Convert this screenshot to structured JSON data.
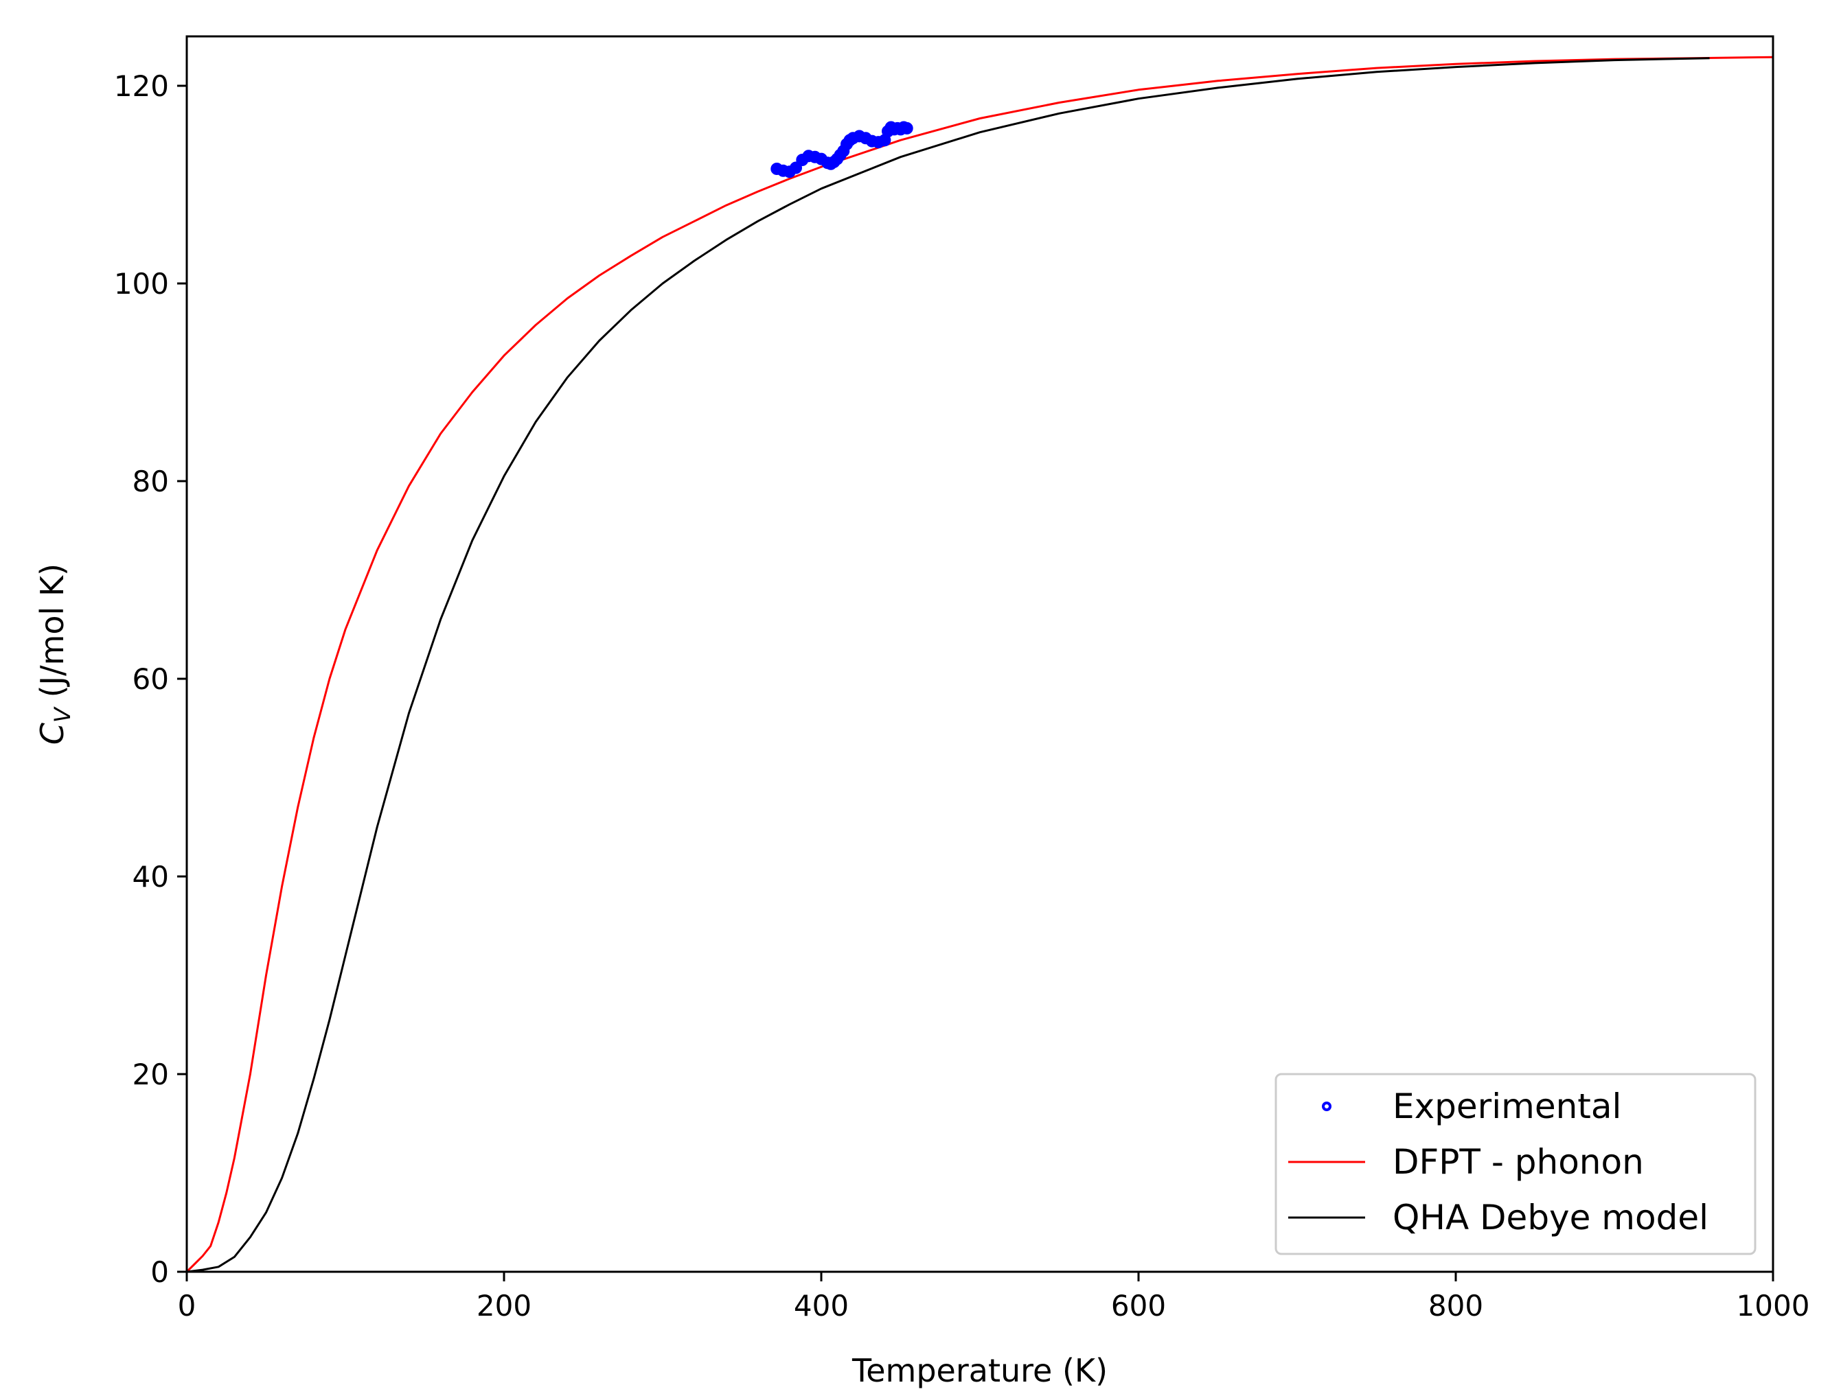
{
  "chart_data": {
    "type": "line",
    "title": "",
    "xlabel": "Temperature (K)",
    "ylabel_symbol": "C",
    "ylabel_subscript": "V",
    "ylabel_rest": " (J/mol K)",
    "xlim": [
      0,
      1000
    ],
    "ylim": [
      0,
      125
    ],
    "xticks": [
      "0",
      "200",
      "400",
      "600",
      "800",
      "1000"
    ],
    "yticks": [
      "0",
      "20",
      "40",
      "60",
      "80",
      "100",
      "120"
    ],
    "xtick_values": [
      0,
      200,
      400,
      600,
      800,
      1000
    ],
    "ytick_values": [
      0,
      20,
      40,
      60,
      80,
      100,
      120
    ],
    "grid": false,
    "legend_position": "bottom-right",
    "series": [
      {
        "name": "Experimental",
        "kind": "scatter",
        "color": "#0000ff",
        "x": [
          372,
          376,
          380,
          384,
          388,
          392,
          396,
          400,
          404,
          406,
          408,
          410,
          412,
          414,
          416,
          418,
          420,
          424,
          428,
          432,
          436,
          440,
          442,
          444,
          446,
          448,
          450,
          452,
          454
        ],
        "y": [
          111.6,
          111.4,
          111.3,
          111.7,
          112.5,
          112.9,
          112.8,
          112.6,
          112.2,
          112.1,
          112.3,
          112.6,
          113.0,
          113.4,
          114.1,
          114.5,
          114.7,
          114.9,
          114.7,
          114.4,
          114.3,
          114.5,
          115.4,
          115.8,
          115.6,
          115.7,
          115.6,
          115.8,
          115.7
        ]
      },
      {
        "name": "DFPT - phonon",
        "kind": "line",
        "color": "#ff0000",
        "x": [
          0,
          5,
          10,
          15,
          20,
          25,
          30,
          40,
          50,
          60,
          70,
          80,
          90,
          100,
          120,
          140,
          160,
          180,
          200,
          220,
          240,
          260,
          280,
          300,
          320,
          340,
          360,
          380,
          400,
          450,
          500,
          550,
          600,
          650,
          700,
          750,
          800,
          850,
          900,
          950,
          1000
        ],
        "y": [
          0,
          0.8,
          1.6,
          2.6,
          5.0,
          8.0,
          11.5,
          20.0,
          30.0,
          39.0,
          47.0,
          54.0,
          60.0,
          65.0,
          73.0,
          79.5,
          84.8,
          89.0,
          92.7,
          95.8,
          98.5,
          100.8,
          102.8,
          104.7,
          106.3,
          107.9,
          109.3,
          110.6,
          111.8,
          114.5,
          116.7,
          118.3,
          119.6,
          120.5,
          121.2,
          121.8,
          122.2,
          122.5,
          122.7,
          122.8,
          122.9
        ]
      },
      {
        "name": "QHA Debye model",
        "kind": "line",
        "color": "#000000",
        "x": [
          0,
          10,
          20,
          30,
          40,
          50,
          60,
          70,
          80,
          90,
          100,
          110,
          120,
          140,
          160,
          180,
          200,
          220,
          240,
          260,
          280,
          300,
          320,
          340,
          360,
          380,
          400,
          450,
          500,
          550,
          600,
          650,
          700,
          750,
          800,
          850,
          900,
          960
        ],
        "y": [
          0,
          0.2,
          0.5,
          1.5,
          3.5,
          6.0,
          9.5,
          14.0,
          19.5,
          25.5,
          32.0,
          38.5,
          45.0,
          56.5,
          66.0,
          74.0,
          80.5,
          86.0,
          90.5,
          94.2,
          97.3,
          100.0,
          102.3,
          104.4,
          106.3,
          108.0,
          109.6,
          112.8,
          115.3,
          117.2,
          118.7,
          119.8,
          120.7,
          121.4,
          121.9,
          122.3,
          122.6,
          122.8
        ]
      }
    ]
  }
}
